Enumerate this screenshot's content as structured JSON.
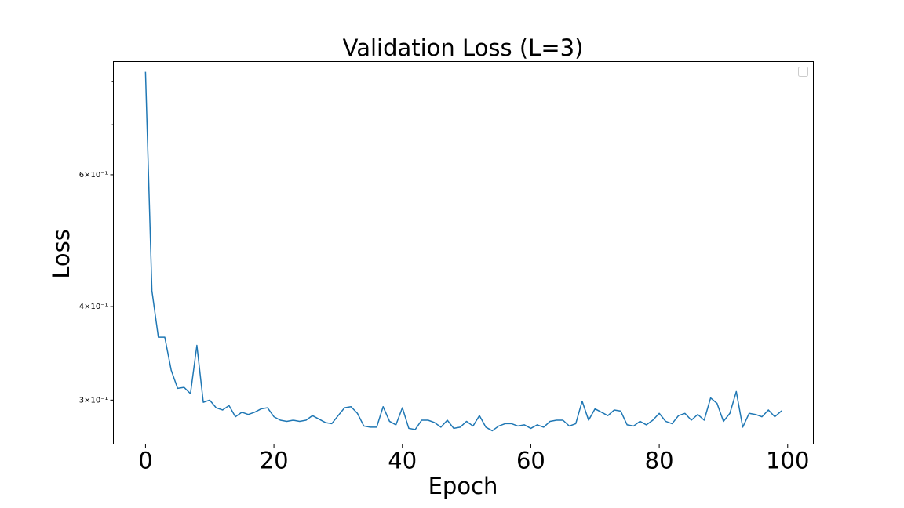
{
  "chart_data": {
    "type": "line",
    "title": "Validation Loss (L=3)",
    "xlabel": "Epoch",
    "ylabel": "Loss",
    "xlim": [
      -5,
      104
    ],
    "ylim": [
      0.262,
      0.85
    ],
    "yscale": "log",
    "grid": false,
    "legend": "top-right",
    "line_color": "#1f77b4",
    "x_ticks": [
      {
        "value": 0,
        "label": "0"
      },
      {
        "value": 20,
        "label": "20"
      },
      {
        "value": 40,
        "label": "40"
      },
      {
        "value": 60,
        "label": "60"
      },
      {
        "value": 80,
        "label": "80"
      },
      {
        "value": 100,
        "label": "100"
      }
    ],
    "y_ticks": [
      {
        "value": 0.3,
        "label": "3×10⁻¹"
      },
      {
        "value": 0.4,
        "label": "4×10⁻¹"
      },
      {
        "value": 0.6,
        "label": "6×10⁻¹"
      }
    ],
    "y_minor_ticks": [
      0.5,
      0.7,
      0.8
    ],
    "series": [
      {
        "values": [
          0.822,
          0.42,
          0.364,
          0.364,
          0.329,
          0.311,
          0.312,
          0.306,
          0.355,
          0.298,
          0.3,
          0.293,
          0.291,
          0.295,
          0.285,
          0.289,
          0.287,
          0.289,
          0.292,
          0.293,
          0.285,
          0.282,
          0.281,
          0.282,
          0.281,
          0.282,
          0.286,
          0.283,
          0.28,
          0.279,
          0.286,
          0.293,
          0.294,
          0.288,
          0.277,
          0.276,
          0.276,
          0.294,
          0.281,
          0.278,
          0.293,
          0.275,
          0.274,
          0.282,
          0.282,
          0.28,
          0.276,
          0.282,
          0.275,
          0.276,
          0.281,
          0.277,
          0.286,
          0.276,
          0.273,
          0.277,
          0.279,
          0.279,
          0.277,
          0.278,
          0.275,
          0.278,
          0.276,
          0.281,
          0.282,
          0.282,
          0.277,
          0.279,
          0.299,
          0.282,
          0.292,
          0.289,
          0.286,
          0.291,
          0.29,
          0.278,
          0.277,
          0.281,
          0.278,
          0.282,
          0.288,
          0.281,
          0.279,
          0.286,
          0.288,
          0.282,
          0.287,
          0.282,
          0.302,
          0.297,
          0.281,
          0.288,
          0.308,
          0.276,
          0.288,
          0.287,
          0.285,
          0.291,
          0.285,
          0.29
        ]
      }
    ]
  }
}
